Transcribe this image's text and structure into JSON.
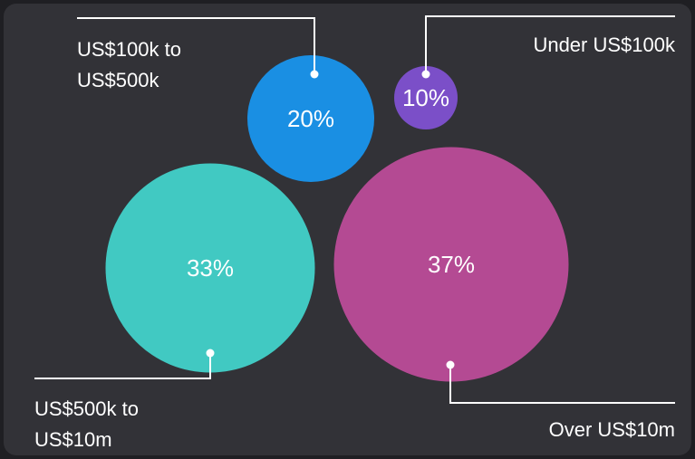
{
  "chart_data": {
    "type": "bubble",
    "categories": [
      "Under US$100k",
      "US$100k to US$500k",
      "US$500k to US$10m",
      "Over US$10m"
    ],
    "values": [
      10,
      20,
      33,
      37
    ],
    "value_labels": [
      "10%",
      "20%",
      "33%",
      "37%"
    ],
    "colors": [
      "#7b4fc8",
      "#1a8fe3",
      "#41c9c2",
      "#b44a93"
    ]
  }
}
